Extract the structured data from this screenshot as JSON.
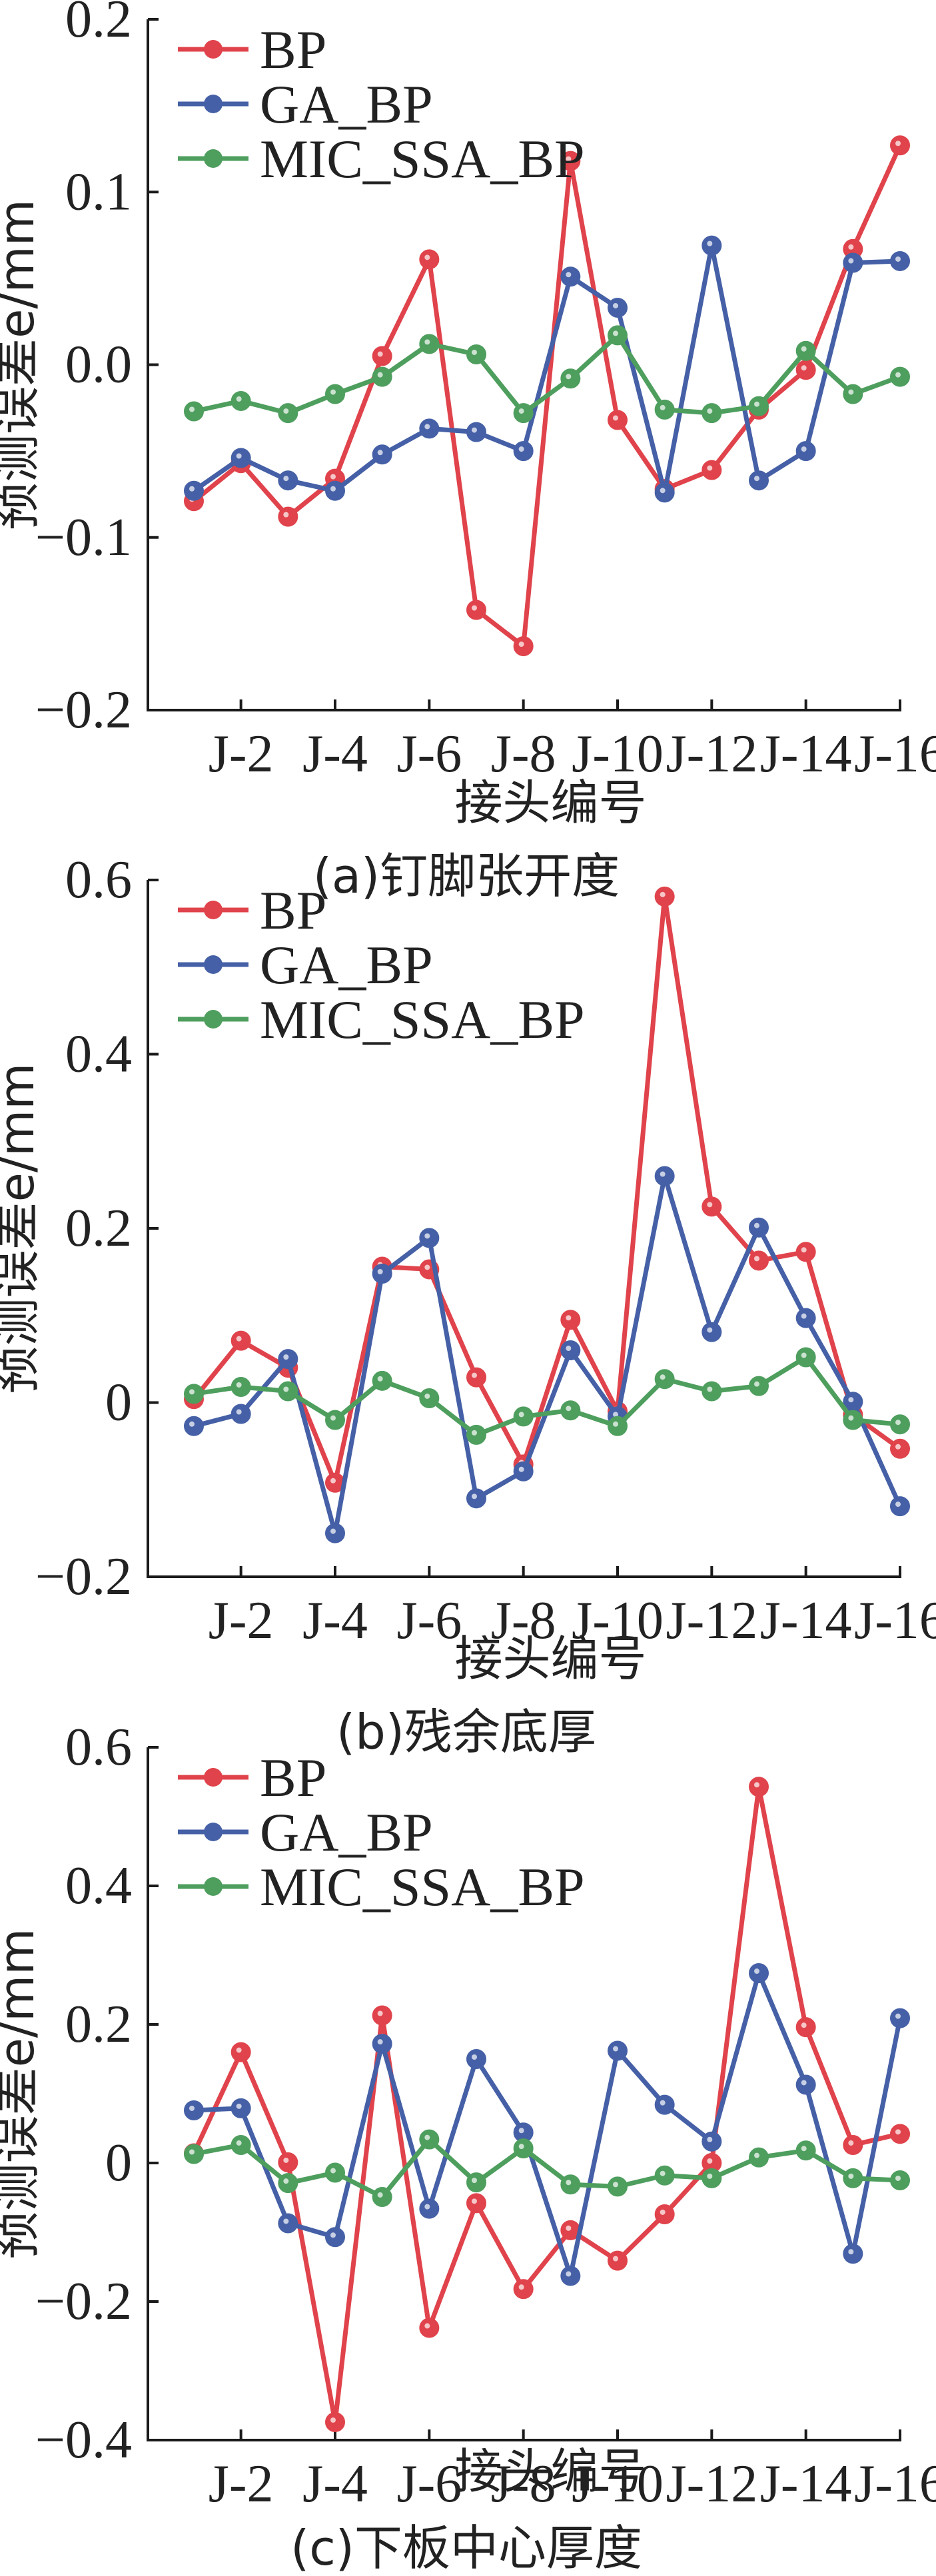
{
  "colors": {
    "BP": "#E0434B",
    "GA_BP": "#4560A6",
    "MIC_SSA_BP": "#4E9E5E",
    "axis": "#1a1a1a"
  },
  "chart_data": [
    {
      "type": "line",
      "caption": "(a)钉脚张开度",
      "xlabel": "接头编号",
      "ylabel": "预测误差e/mm",
      "ylim": [
        -0.2,
        0.2
      ],
      "yticks": [
        -0.2,
        -0.1,
        0.0,
        0.1,
        0.2
      ],
      "ytick_labels": [
        "−0.2",
        "−0.1",
        "0.0",
        "0.1",
        "0.2"
      ],
      "x": [
        "J-1",
        "J-2",
        "J-3",
        "J-4",
        "J-5",
        "J-6",
        "J-7",
        "J-8",
        "J-9",
        "J-10",
        "J-11",
        "J-12",
        "J-13",
        "J-14",
        "J-15",
        "J-16"
      ],
      "xtick_labels": [
        "J-2",
        "J-4",
        "J-6",
        "J-8",
        "J-10",
        "J-12",
        "J-14",
        "J-16"
      ],
      "legend": "top-left",
      "series": [
        {
          "name": "BP",
          "values": [
            -0.079,
            -0.057,
            -0.088,
            -0.066,
            0.005,
            0.061,
            -0.142,
            -0.163,
            0.118,
            -0.032,
            -0.072,
            -0.061,
            -0.026,
            -0.003,
            0.067,
            0.127
          ]
        },
        {
          "name": "GA_BP",
          "values": [
            -0.073,
            -0.054,
            -0.067,
            -0.073,
            -0.052,
            -0.037,
            -0.039,
            -0.05,
            0.051,
            0.033,
            -0.074,
            0.069,
            -0.067,
            -0.05,
            0.059,
            0.06
          ]
        },
        {
          "name": "MIC_SSA_BP",
          "values": [
            -0.027,
            -0.021,
            -0.028,
            -0.017,
            -0.007,
            0.012,
            0.006,
            -0.028,
            -0.008,
            0.017,
            -0.026,
            -0.028,
            -0.024,
            0.008,
            -0.017,
            -0.007
          ]
        }
      ]
    },
    {
      "type": "line",
      "caption": "(b)残余底厚",
      "xlabel": "接头编号",
      "ylabel": "预测误差e/mm",
      "ylim": [
        -0.2,
        0.6
      ],
      "yticks": [
        -0.2,
        0,
        0.2,
        0.4,
        0.6
      ],
      "ytick_labels": [
        "−0.2",
        "0",
        "0.2",
        "0.4",
        "0.6"
      ],
      "x": [
        "J-1",
        "J-2",
        "J-3",
        "J-4",
        "J-5",
        "J-6",
        "J-7",
        "J-8",
        "J-9",
        "J-10",
        "J-11",
        "J-12",
        "J-13",
        "J-14",
        "J-15",
        "J-16"
      ],
      "xtick_labels": [
        "J-2",
        "J-4",
        "J-6",
        "J-8",
        "J-10",
        "J-12",
        "J-14",
        "J-16"
      ],
      "legend": "top-left",
      "series": [
        {
          "name": "BP",
          "values": [
            0.004,
            0.071,
            0.04,
            -0.092,
            0.156,
            0.153,
            0.029,
            -0.071,
            0.095,
            -0.01,
            0.581,
            0.225,
            0.163,
            0.173,
            -0.014,
            -0.053
          ]
        },
        {
          "name": "GA_BP",
          "values": [
            -0.027,
            -0.013,
            0.05,
            -0.15,
            0.148,
            0.189,
            -0.11,
            -0.079,
            0.06,
            -0.016,
            0.26,
            0.081,
            0.201,
            0.097,
            0.001,
            -0.119
          ]
        },
        {
          "name": "MIC_SSA_BP",
          "values": [
            0.01,
            0.018,
            0.013,
            -0.02,
            0.025,
            0.005,
            -0.037,
            -0.016,
            -0.009,
            -0.027,
            0.027,
            0.013,
            0.019,
            0.052,
            -0.02,
            -0.025
          ]
        }
      ]
    },
    {
      "type": "line",
      "caption": "(c)下板中心厚度",
      "xlabel": "接头编号",
      "ylabel": "预测误差e/mm",
      "ylim": [
        -0.4,
        0.6
      ],
      "yticks": [
        -0.4,
        -0.2,
        0,
        0.2,
        0.4,
        0.6
      ],
      "ytick_labels": [
        "−0.4",
        "−0.2",
        "0",
        "0.2",
        "0.4",
        "0.6"
      ],
      "x": [
        "J-1",
        "J-2",
        "J-3",
        "J-4",
        "J-5",
        "J-6",
        "J-7",
        "J-8",
        "J-9",
        "J-10",
        "J-11",
        "J-12",
        "J-13",
        "J-14",
        "J-15",
        "J-16"
      ],
      "xtick_labels": [
        "J-2",
        "J-4",
        "J-6",
        "J-8",
        "J-10",
        "J-12",
        "J-14",
        "J-16"
      ],
      "legend": "top-left",
      "series": [
        {
          "name": "BP",
          "values": [
            0.014,
            0.16,
            0.001,
            -0.374,
            0.213,
            -0.238,
            -0.058,
            -0.182,
            -0.097,
            -0.141,
            -0.074,
            0.0,
            0.543,
            0.196,
            0.026,
            0.042
          ]
        },
        {
          "name": "GA_BP",
          "values": [
            0.076,
            0.079,
            -0.087,
            -0.107,
            0.172,
            -0.066,
            0.15,
            0.044,
            -0.163,
            0.162,
            0.084,
            0.031,
            0.274,
            0.113,
            -0.131,
            0.209
          ]
        },
        {
          "name": "MIC_SSA_BP",
          "values": [
            0.013,
            0.026,
            -0.029,
            -0.014,
            -0.049,
            0.034,
            -0.028,
            0.021,
            -0.031,
            -0.034,
            -0.018,
            -0.022,
            0.008,
            0.018,
            -0.022,
            -0.025
          ]
        }
      ]
    }
  ]
}
